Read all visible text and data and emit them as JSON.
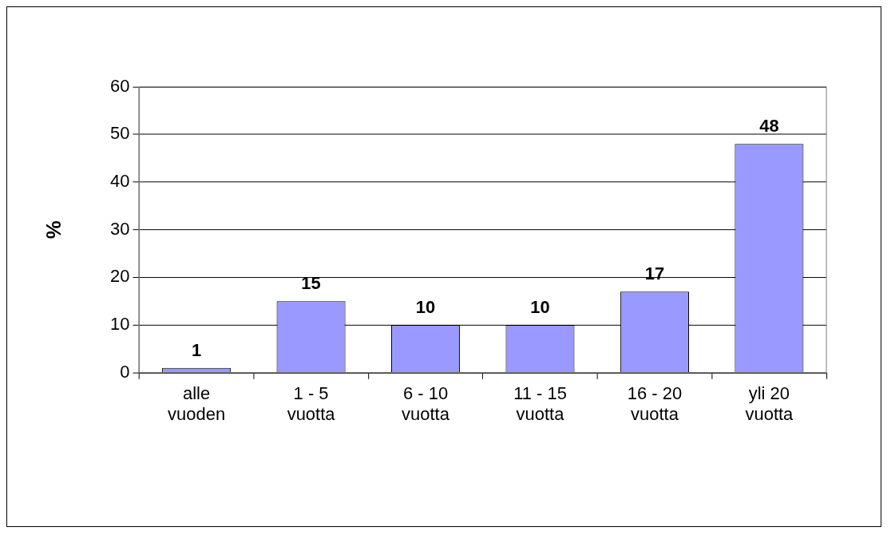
{
  "chart_data": {
    "type": "bar",
    "categories": [
      "alle\nvuoden",
      "1 - 5\nvuotta",
      "6 - 10\nvuotta",
      "11 - 15\nvuotta",
      "16 - 20\nvuotta",
      "yli 20\nvuotta"
    ],
    "values": [
      1,
      15,
      10,
      10,
      17,
      48
    ],
    "color": "#9999ff",
    "ylabel": "%",
    "ylim": [
      0,
      60
    ],
    "yticks": [
      0,
      10,
      20,
      30,
      40,
      50,
      60
    ],
    "grid": "y",
    "data_labels": true,
    "legend": false
  }
}
